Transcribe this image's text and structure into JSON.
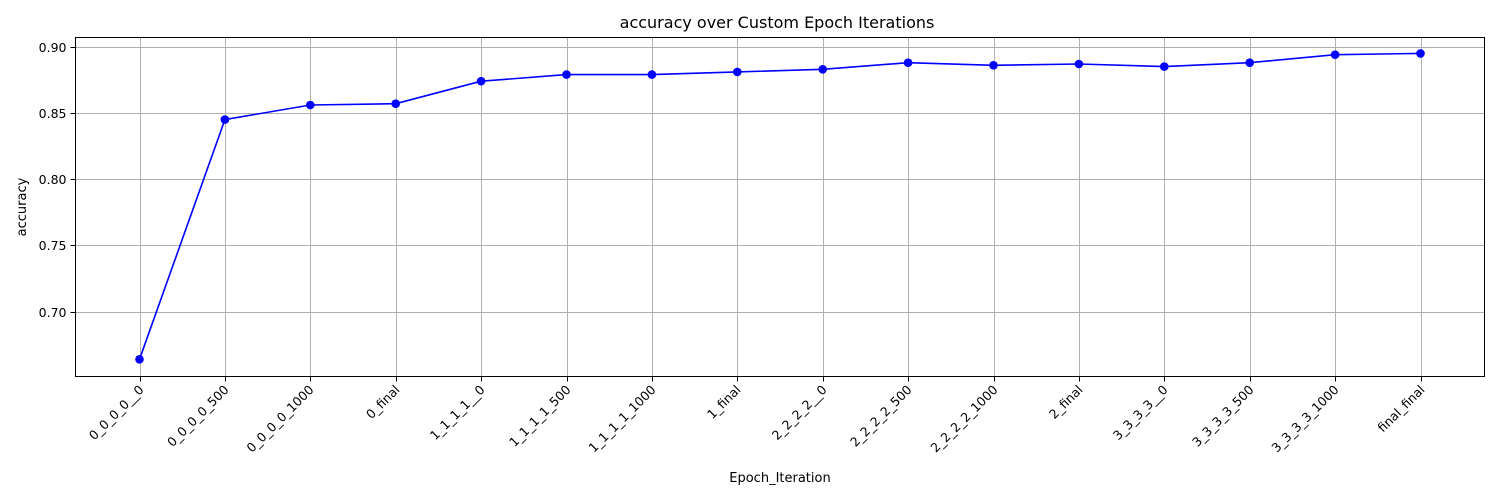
{
  "chart_data": {
    "type": "line",
    "title": "accuracy over Custom Epoch Iterations",
    "xlabel": "Epoch_Iteration",
    "ylabel": "accuracy",
    "categories": [
      "0_0_0_0__0",
      "0_0_0_0_500",
      "0_0_0_0_1000",
      "0_final",
      "1_1_1_1__0",
      "1_1_1_1_500",
      "1_1_1_1_1000",
      "1_final",
      "2_2_2_2__0",
      "2_2_2_2_500",
      "2_2_2_2_1000",
      "2_final",
      "3_3_3_3__0",
      "3_3_3_3_500",
      "3_3_3_3_1000",
      "final_final"
    ],
    "series": [
      {
        "values": [
          0.664,
          0.845,
          0.856,
          0.857,
          0.874,
          0.879,
          0.879,
          0.881,
          0.883,
          0.888,
          0.886,
          0.887,
          0.885,
          0.888,
          0.894,
          0.895
        ],
        "color": "#0000ff",
        "marker": "circle"
      }
    ],
    "ylim": [
      0.651,
      0.907
    ],
    "yticks": [
      0.7,
      0.75,
      0.8,
      0.85,
      0.9
    ],
    "ytick_labels": [
      "0.70",
      "0.75",
      "0.80",
      "0.85",
      "0.90"
    ],
    "grid": true,
    "xtick_rotation": "45"
  }
}
